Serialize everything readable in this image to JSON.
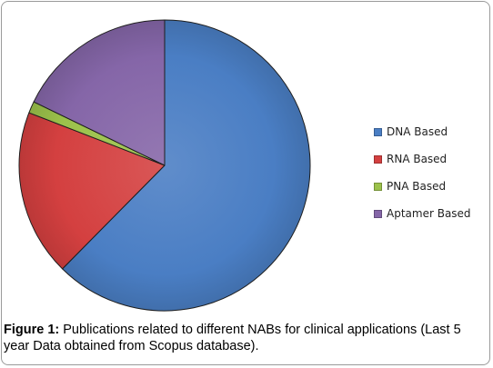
{
  "chart_data": {
    "type": "pie",
    "categories": [
      "DNA Based",
      "RNA Based",
      "PNA Based",
      "Aptamer Based"
    ],
    "values": [
      62.4,
      18.5,
      1.3,
      17.8
    ],
    "colors": [
      "#4a7ec4",
      "#d44040",
      "#9cc24b",
      "#8566a8"
    ],
    "start_angle": "12 o'clock",
    "direction": "clockwise",
    "legend_position": "right"
  },
  "caption": {
    "label": "Figure 1:",
    "text": " Publications related to different NABs for clinical applications (Last 5 year Data obtained from Scopus database)."
  }
}
